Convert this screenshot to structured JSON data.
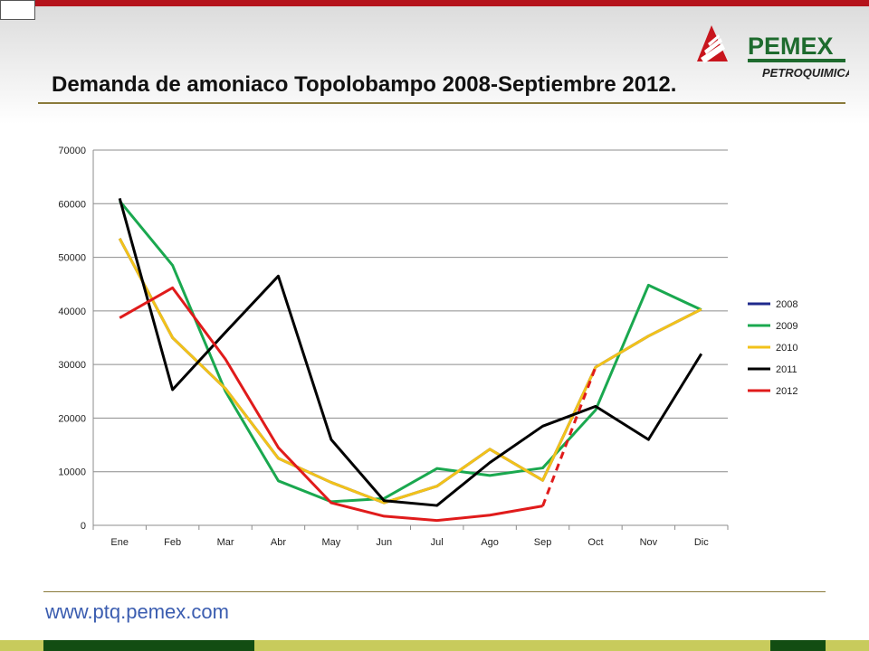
{
  "slide": {
    "title": "Demanda de amoniaco Topolobampo 2008-Septiembre 2012.",
    "url": "www.ptq.pemex.com",
    "colors": {
      "top_bar": "#b5121b",
      "footer_dark": "#124d12",
      "footer_light": "#c8cb5c",
      "rule": "#8a7a3a"
    }
  },
  "logo": {
    "brand": "PEMEX",
    "division": "PETROQUIMICA",
    "icon": "pemex-eagle-icon"
  },
  "chart_data": {
    "type": "line",
    "title": "",
    "xlabel": "",
    "ylabel": "",
    "categories": [
      "Ene",
      "Feb",
      "Mar",
      "Abr",
      "May",
      "Jun",
      "Jul",
      "Ago",
      "Sep",
      "Oct",
      "Nov",
      "Dic"
    ],
    "ylim": [
      0,
      70000
    ],
    "yticks": [
      0,
      10000,
      20000,
      30000,
      40000,
      50000,
      60000,
      70000
    ],
    "grid": true,
    "legend_position": "right",
    "series": [
      {
        "name": "2008",
        "color": "#1f2a8c",
        "values": [
          53500,
          35000,
          25500,
          12500,
          8000,
          4200,
          7300,
          14200,
          8400,
          29500,
          35300,
          40300
        ]
      },
      {
        "name": "2009",
        "color": "#1aa84f",
        "values": [
          60500,
          48500,
          25000,
          8300,
          4400,
          5000,
          10600,
          9300,
          10700,
          21500,
          44800,
          40200
        ]
      },
      {
        "name": "2010",
        "color": "#f2c21a",
        "values": [
          53500,
          35000,
          25500,
          12500,
          8000,
          4200,
          7300,
          14200,
          8400,
          29500,
          35300,
          40300
        ]
      },
      {
        "name": "2011",
        "color": "#000000",
        "values": [
          61000,
          25300,
          36000,
          46500,
          16000,
          4600,
          3700,
          11700,
          18500,
          22200,
          16000,
          32000
        ]
      },
      {
        "name": "2012",
        "color": "#e01b1b",
        "values": [
          38700,
          44300,
          31000,
          14500,
          4200,
          1700,
          900,
          1900,
          3600,
          29500,
          null,
          null
        ],
        "dashed_from_index": 8
      }
    ]
  }
}
